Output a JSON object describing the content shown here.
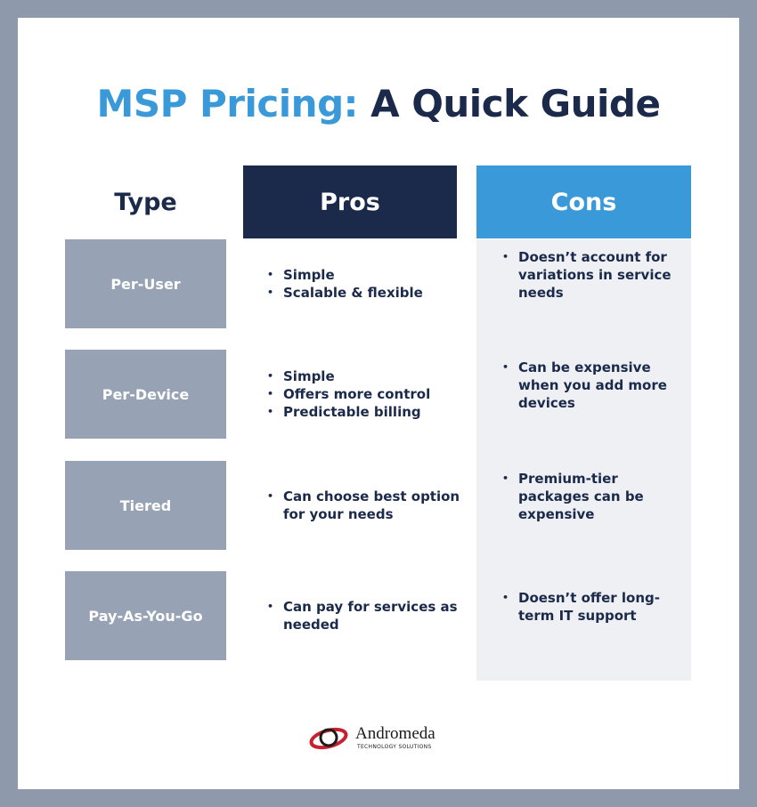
{
  "title": {
    "highlight": "MSP Pricing:",
    "rest": "A Quick Guide"
  },
  "table": {
    "headers": [
      "Type",
      "Pros",
      "Cons"
    ],
    "rows": [
      {
        "type": "Per-User",
        "pros": [
          "Simple",
          "Scalable & flexible"
        ],
        "cons": [
          "Doesn’t account for variations in service needs"
        ]
      },
      {
        "type": "Per-Device",
        "pros": [
          "Simple",
          "Offers more control",
          "Predictable billing"
        ],
        "cons": [
          "Can be expensive when you add more devices"
        ]
      },
      {
        "type": "Tiered",
        "pros": [
          "Can choose best option for your needs"
        ],
        "cons": [
          "Premium-tier packages can be expensive"
        ]
      },
      {
        "type": "Pay-As-You-Go",
        "pros": [
          "Can pay for services as needed"
        ],
        "cons": [
          "Doesn’t offer long-term IT support"
        ]
      }
    ]
  },
  "logo": {
    "name": "Andromeda",
    "tagline": "TECHNOLOGY SOLUTIONS"
  }
}
